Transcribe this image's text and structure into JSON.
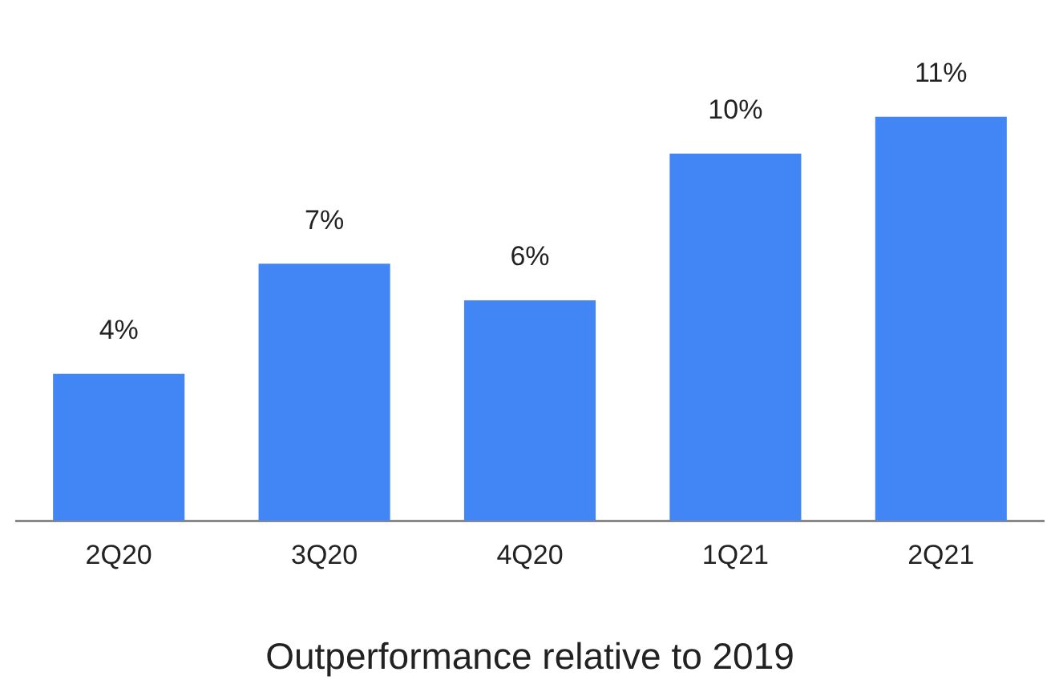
{
  "chart_data": {
    "type": "bar",
    "xlabel": "Outperformance relative to 2019",
    "categories": [
      "2Q20",
      "3Q20",
      "4Q20",
      "1Q21",
      "2Q21"
    ],
    "values": [
      4,
      7,
      6,
      10,
      11
    ],
    "color": "#4285f4",
    "value_labels": [
      "4%",
      "7%",
      "6%",
      "10%",
      "11%"
    ],
    "tick_labels": "x",
    "grid": false,
    "legend": false
  }
}
